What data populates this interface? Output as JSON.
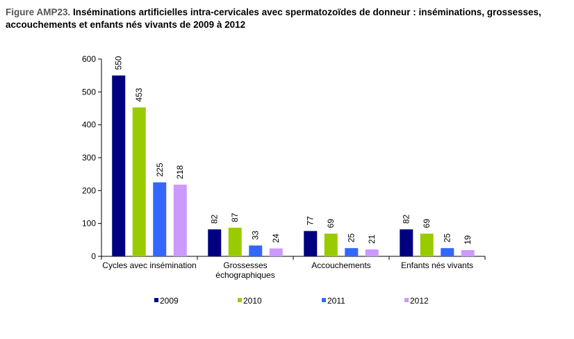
{
  "figure": {
    "prefix": "Figure AMP23.",
    "title": "Inséminations artificielles intra-cervicales avec spermatozoïdes de donneur : inséminations, grossesses, accouchements et enfants nés vivants de 2009 à 2012"
  },
  "chart_data": {
    "type": "bar",
    "categories": [
      [
        "Cycles avec insémination"
      ],
      [
        "Grossesses",
        "échographiques"
      ],
      [
        "Accouchements"
      ],
      [
        "Enfants nés vivants"
      ]
    ],
    "series": [
      {
        "name": "2009",
        "color": "#000080",
        "values": [
          550,
          82,
          77,
          82
        ]
      },
      {
        "name": "2010",
        "color": "#99cc00",
        "values": [
          453,
          87,
          69,
          69
        ]
      },
      {
        "name": "2011",
        "color": "#3366ff",
        "values": [
          225,
          33,
          25,
          25
        ]
      },
      {
        "name": "2012",
        "color": "#cc99ff",
        "values": [
          218,
          24,
          21,
          19
        ]
      }
    ],
    "ylim": [
      0,
      600
    ],
    "yticks": [
      "0",
      "100",
      "200",
      "300",
      "400",
      "500",
      "600"
    ],
    "grid": false,
    "data_labels": true,
    "data_label_rotation": "vertical",
    "legend_position": "bottom"
  }
}
